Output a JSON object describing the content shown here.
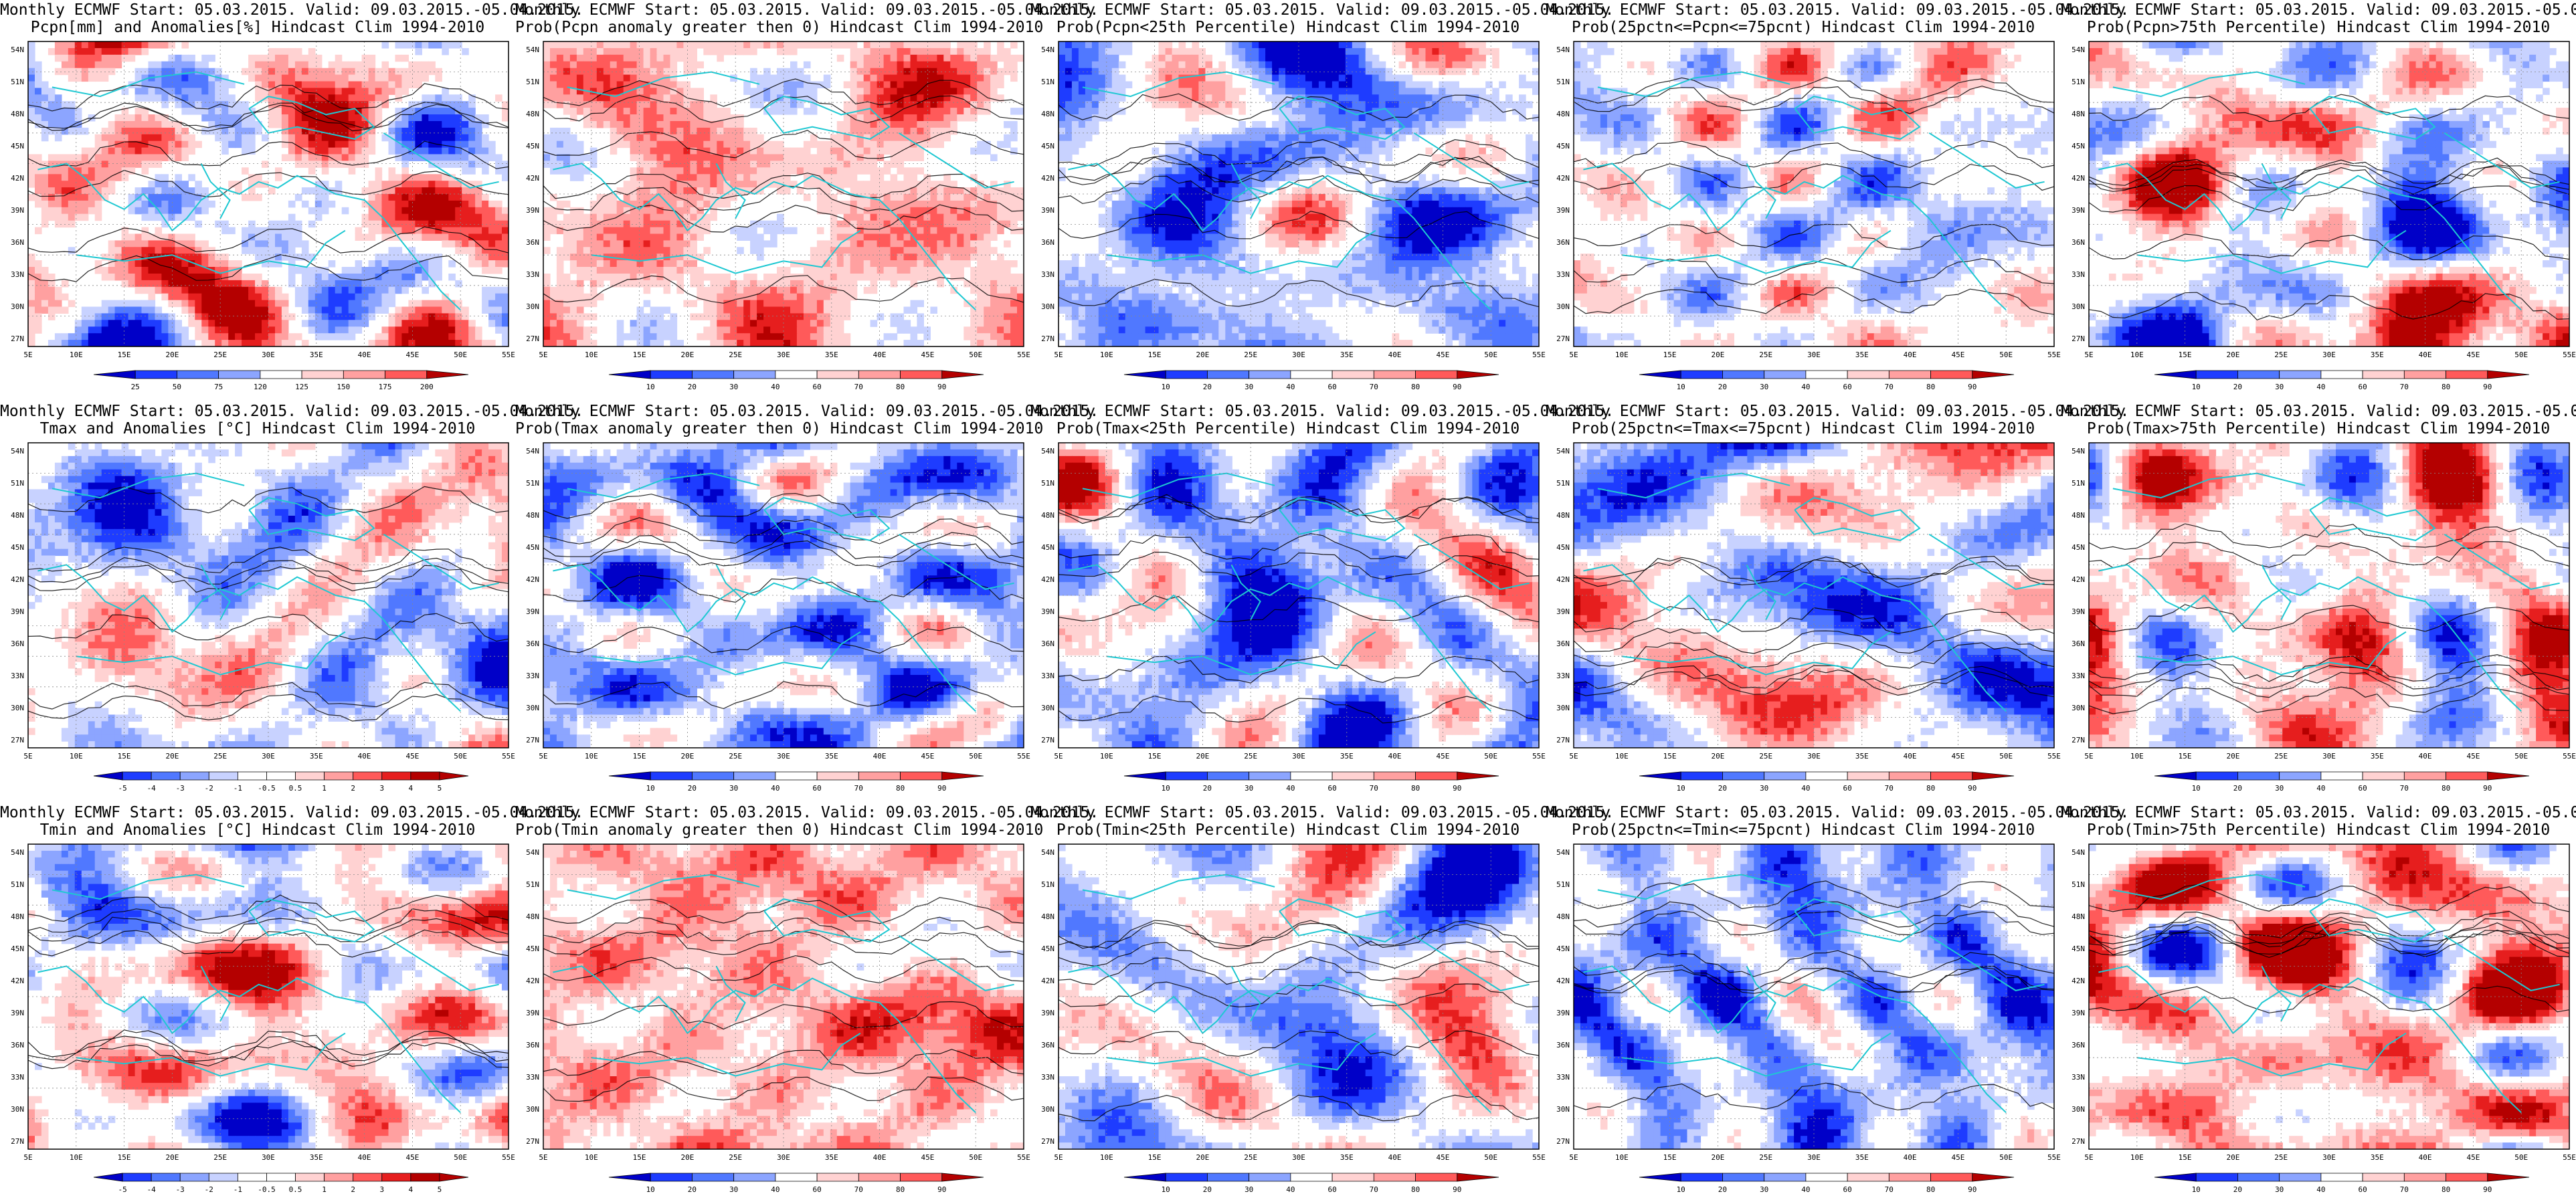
{
  "header_line": "Monthly ECMWF Start: 05.03.2015. Valid: 09.03.2015.-05.04.2015.",
  "lat_labels": [
    "54N",
    "51N",
    "48N",
    "45N",
    "42N",
    "39N",
    "36N",
    "33N",
    "30N",
    "27N"
  ],
  "lon_labels": [
    "5E",
    "10E",
    "15E",
    "20E",
    "25E",
    "30E",
    "35E",
    "40E",
    "45E",
    "50E",
    "55E"
  ],
  "colors": {
    "blues": [
      "#0000c8",
      "#1e3cff",
      "#5078ff",
      "#8ca5ff",
      "#c8d2ff"
    ],
    "neutral": "#ffffff",
    "reds": [
      "#ffd2d2",
      "#ffa0a0",
      "#ff5a5a",
      "#e61e1e",
      "#b40000"
    ],
    "coast": "#1ec8d2",
    "contour": "#000000"
  },
  "panels": [
    {
      "subtitle": "Pcpn[mm] and Anomalies[%] Hindcast Clim 1994-2010",
      "scale": [
        "25",
        "50",
        "75",
        "120",
        "125",
        "150",
        "175",
        "200"
      ],
      "kind": "anom",
      "seed": 11
    },
    {
      "subtitle": "Prob(Pcpn anomaly greater then 0) Hindcast Clim 1994-2010",
      "scale": [
        "10",
        "20",
        "30",
        "40",
        "60",
        "70",
        "80",
        "90"
      ],
      "kind": "prob",
      "seed": 23
    },
    {
      "subtitle": "Prob(Pcpn<25th Percentile) Hindcast Clim 1994-2010",
      "scale": [
        "10",
        "20",
        "30",
        "40",
        "60",
        "70",
        "80",
        "90"
      ],
      "kind": "prob",
      "seed": 37
    },
    {
      "subtitle": "Prob(25pctn<=Pcpn<=75pcnt) Hindcast Clim 1994-2010",
      "scale": [
        "10",
        "20",
        "30",
        "40",
        "60",
        "70",
        "80",
        "90"
      ],
      "kind": "prob",
      "seed": 41
    },
    {
      "subtitle": "Prob(Pcpn>75th Percentile) Hindcast Clim 1994-2010",
      "scale": [
        "10",
        "20",
        "30",
        "40",
        "60",
        "70",
        "80",
        "90"
      ],
      "kind": "prob",
      "seed": 53
    },
    {
      "subtitle": "Tmax and Anomalies [°C] Hindcast Clim 1994-2010",
      "scale": [
        "-5",
        "-4",
        "-3",
        "-2",
        "-1",
        "-0.5",
        "0.5",
        "1",
        "2",
        "3",
        "4",
        "5"
      ],
      "kind": "anom",
      "seed": 61
    },
    {
      "subtitle": "Prob(Tmax anomaly greater then 0) Hindcast Clim 1994-2010",
      "scale": [
        "10",
        "20",
        "30",
        "40",
        "60",
        "70",
        "80",
        "90"
      ],
      "kind": "prob",
      "seed": 71
    },
    {
      "subtitle": "Prob(Tmax<25th Percentile) Hindcast Clim 1994-2010",
      "scale": [
        "10",
        "20",
        "30",
        "40",
        "60",
        "70",
        "80",
        "90"
      ],
      "kind": "prob",
      "seed": 83
    },
    {
      "subtitle": "Prob(25pctn<=Tmax<=75pcnt) Hindcast Clim 1994-2010",
      "scale": [
        "10",
        "20",
        "30",
        "40",
        "60",
        "70",
        "80",
        "90"
      ],
      "kind": "prob",
      "seed": 97
    },
    {
      "subtitle": "Prob(Tmax>75th Percentile) Hindcast Clim 1994-2010",
      "scale": [
        "10",
        "20",
        "30",
        "40",
        "60",
        "70",
        "80",
        "90"
      ],
      "kind": "prob",
      "seed": 101
    },
    {
      "subtitle": "Tmin and Anomalies [°C] Hindcast Clim 1994-2010",
      "scale": [
        "-5",
        "-4",
        "-3",
        "-2",
        "-1",
        "-0.5",
        "0.5",
        "1",
        "2",
        "3",
        "4",
        "5"
      ],
      "kind": "anom",
      "seed": 113
    },
    {
      "subtitle": "Prob(Tmin anomaly greater then 0) Hindcast Clim 1994-2010",
      "scale": [
        "10",
        "20",
        "30",
        "40",
        "60",
        "70",
        "80",
        "90"
      ],
      "kind": "prob",
      "seed": 127
    },
    {
      "subtitle": "Prob(Tmin<25th Percentile) Hindcast Clim 1994-2010",
      "scale": [
        "10",
        "20",
        "30",
        "40",
        "60",
        "70",
        "80",
        "90"
      ],
      "kind": "prob",
      "seed": 131
    },
    {
      "subtitle": "Prob(25pctn<=Tmin<=75pcnt) Hindcast Clim 1994-2010",
      "scale": [
        "10",
        "20",
        "30",
        "40",
        "60",
        "70",
        "80",
        "90"
      ],
      "kind": "prob",
      "seed": 139
    },
    {
      "subtitle": "Prob(Tmin>75th Percentile) Hindcast Clim 1994-2010",
      "scale": [
        "10",
        "20",
        "30",
        "40",
        "60",
        "70",
        "80",
        "90"
      ],
      "kind": "prob",
      "seed": 149
    }
  ]
}
